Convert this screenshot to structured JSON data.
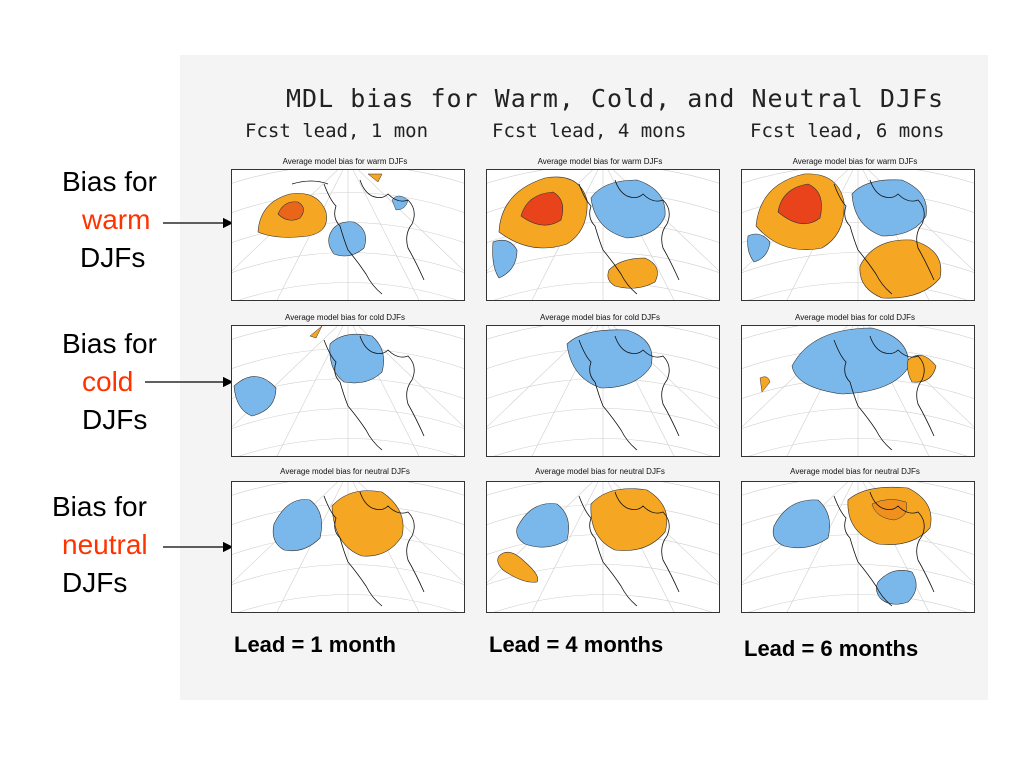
{
  "figure": {
    "title": "MDL bias for Warm, Cold, and Neutral DJFs",
    "lead_headers": [
      "Fcst lead, 1 mon",
      "Fcst lead, 4 mons",
      "Fcst lead, 6 mons"
    ]
  },
  "row_labels": [
    {
      "line1": "Bias for",
      "emphasis": "warm",
      "line3": "DJFs"
    },
    {
      "line1": "Bias for",
      "emphasis": "cold",
      "line3": "DJFs"
    },
    {
      "line1": "Bias for",
      "emphasis": "neutral",
      "line3": "DJFs"
    }
  ],
  "map_captions": {
    "warm": "Average model bias for warm DJFs",
    "cold": "Average model bias for cold DJFs",
    "neutral": "Average model bias for neutral DJFs"
  },
  "bottom_labels": [
    "Lead = 1 month",
    "Lead = 4 months",
    "Lead = 6 months"
  ],
  "colors": {
    "emphasis": "#ff3300",
    "positive_bias": "#f5a623",
    "strong_positive_bias": "#e8431a",
    "negative_bias": "#7ab8ec",
    "coast": "#111111"
  }
}
